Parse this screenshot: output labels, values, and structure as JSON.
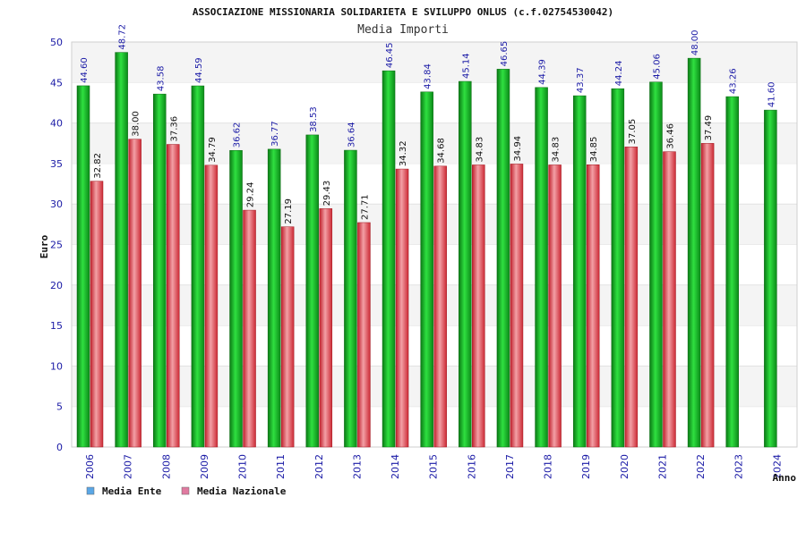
{
  "colors": {
    "series_ente": "#18b52a",
    "series_naz": "#e8444e",
    "legend_ente": "#5aa7e6",
    "legend_naz": "#e07aa0",
    "band": "#f4f4f4",
    "tick_text": "#1a1aa6"
  },
  "chart_data": {
    "type": "bar",
    "title": "ASSOCIAZIONE MISSIONARIA SOLIDARIETA E SVILUPPO ONLUS (c.f.02754530042)",
    "subtitle": "Media Importi",
    "xlabel": "Anno",
    "ylabel": "Euro",
    "ylim": [
      0,
      50
    ],
    "yticks": [
      0,
      5,
      10,
      15,
      20,
      25,
      30,
      35,
      40,
      45,
      50
    ],
    "grid": "horizontal alternating bands",
    "legend_position": "bottom-left",
    "categories": [
      "2006",
      "2007",
      "2008",
      "2009",
      "2010",
      "2011",
      "2012",
      "2013",
      "2014",
      "2015",
      "2016",
      "2017",
      "2018",
      "2019",
      "2020",
      "2021",
      "2022",
      "2023",
      "2024"
    ],
    "series": [
      {
        "name": "Media Ente",
        "values": [
          44.6,
          48.72,
          43.58,
          44.59,
          36.62,
          36.77,
          38.53,
          36.64,
          46.45,
          43.84,
          45.14,
          46.65,
          44.39,
          43.37,
          44.24,
          45.06,
          48.0,
          43.26,
          41.6
        ],
        "labels": [
          "44.60",
          "48.72",
          "43.58",
          "44.59",
          "36.62",
          "36.77",
          "38.53",
          "36.64",
          "46.45",
          "43.84",
          "45.14",
          "46.65",
          "44.39",
          "43.37",
          "44.24",
          "45.06",
          "48.00",
          "43.26",
          "41.60"
        ]
      },
      {
        "name": "Media Nazionale",
        "values": [
          32.82,
          38.0,
          37.36,
          34.79,
          29.24,
          27.19,
          29.43,
          27.71,
          34.32,
          34.68,
          34.83,
          34.94,
          34.83,
          34.85,
          37.05,
          36.46,
          37.49,
          null,
          null
        ],
        "labels": [
          "32.82",
          "38.00",
          "37.36",
          "34.79",
          "29.24",
          "27.19",
          "29.43",
          "27.71",
          "34.32",
          "34.68",
          "34.83",
          "34.94",
          "34.83",
          "34.85",
          "37.05",
          "36.46",
          "37.49",
          "",
          ""
        ]
      }
    ]
  }
}
